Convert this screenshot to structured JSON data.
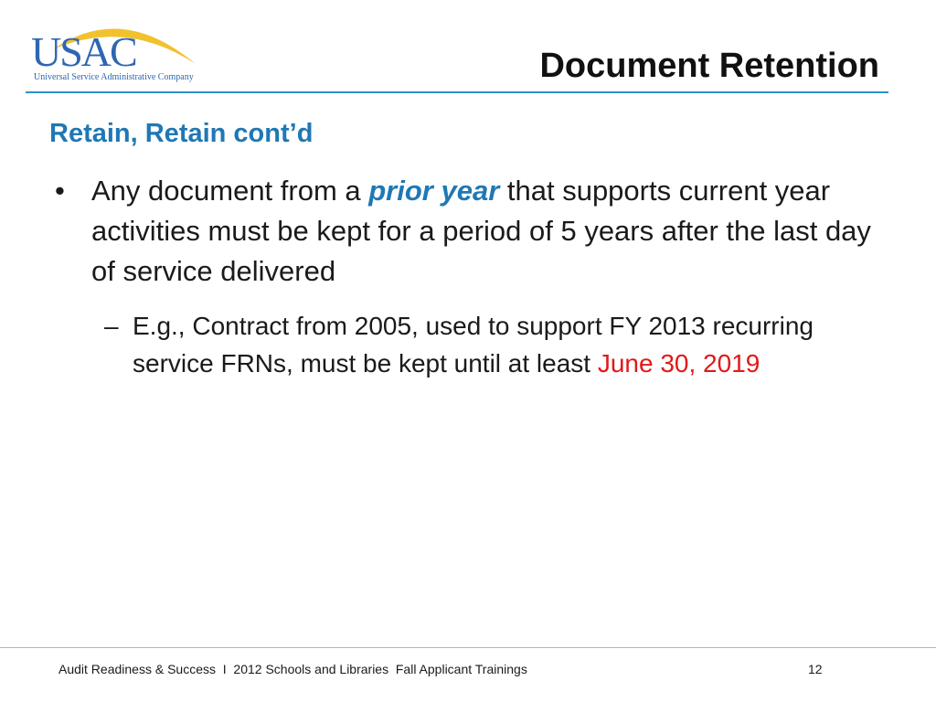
{
  "logo": {
    "name": "USAC",
    "tagline": "Universal Service Administrative Company"
  },
  "slide": {
    "title": "Document Retention",
    "section_heading": "Retain, Retain cont’d",
    "bullet": {
      "marker": "•",
      "text_before": "Any document from a ",
      "emphasis": "prior year",
      "text_after": " that supports current year activities must be kept for a period of 5 years after the last day of service delivered"
    },
    "sub_bullet": {
      "marker": "–",
      "text": "E.g., Contract from 2005, used to support FY 2013 recurring service FRNs, must be kept until at least ",
      "highlight": "June 30, 2019"
    }
  },
  "footer": {
    "text": "Audit Readiness & Success  I  2012 Schools and Libraries  Fall Applicant Trainings",
    "page_number": "12"
  },
  "colors": {
    "brand_blue": "#2d67b3",
    "accent_blue": "#1f78b4",
    "arc_yellow": "#f2c12e",
    "highlight_red": "#e11919"
  }
}
